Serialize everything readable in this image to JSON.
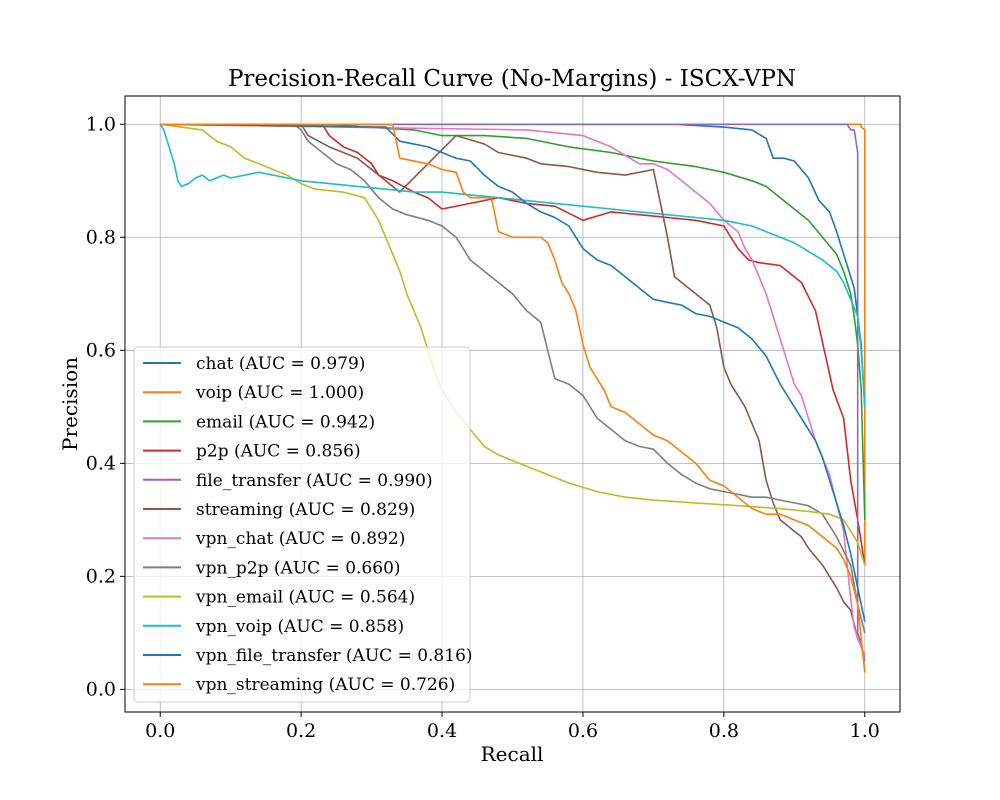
{
  "chart_data": {
    "type": "line",
    "title": "Precision-Recall Curve (No-Margins) - ISCX-VPN",
    "xlabel": "Recall",
    "ylabel": "Precision",
    "xlim": [
      -0.05,
      1.05
    ],
    "ylim": [
      -0.04,
      1.05
    ],
    "xticks": [
      0.0,
      0.2,
      0.4,
      0.6,
      0.8,
      1.0
    ],
    "yticks": [
      0.0,
      0.2,
      0.4,
      0.6,
      0.8,
      1.0
    ],
    "xtick_labels": [
      "0.0",
      "0.2",
      "0.4",
      "0.6",
      "0.8",
      "1.0"
    ],
    "ytick_labels": [
      "0.0",
      "0.2",
      "0.4",
      "0.6",
      "0.8",
      "1.0"
    ],
    "grid": true,
    "legend_position": "lower-left",
    "series": [
      {
        "name": "chat (AUC = 0.979)",
        "color": "#1f77b4",
        "x": [
          0,
          0.73,
          0.8,
          0.84,
          0.86,
          0.87,
          0.885,
          0.9,
          0.92,
          0.935,
          0.95,
          0.96,
          0.965,
          0.975,
          0.985,
          0.99,
          0.995,
          1.0
        ],
        "y": [
          1.0,
          1.0,
          0.995,
          0.99,
          0.975,
          0.94,
          0.94,
          0.935,
          0.905,
          0.865,
          0.845,
          0.81,
          0.79,
          0.75,
          0.71,
          0.66,
          0.61,
          0.5
        ]
      },
      {
        "name": "voip (AUC = 1.000)",
        "color": "#ff7f0e",
        "x": [
          0,
          0.995,
          0.995,
          1.0,
          1.0
        ],
        "y": [
          1.0,
          1.0,
          0.995,
          0.99,
          0.22
        ]
      },
      {
        "name": "email (AUC = 0.942)",
        "color": "#2ca02c",
        "x": [
          0,
          0.24,
          0.29,
          0.36,
          0.4,
          0.46,
          0.52,
          0.58,
          0.64,
          0.7,
          0.76,
          0.8,
          0.84,
          0.86,
          0.88,
          0.9,
          0.92,
          0.94,
          0.96,
          0.97,
          0.98,
          0.985,
          0.99,
          0.995,
          1.0
        ],
        "y": [
          1.0,
          1.0,
          0.995,
          0.99,
          0.98,
          0.98,
          0.975,
          0.96,
          0.95,
          0.935,
          0.925,
          0.915,
          0.9,
          0.89,
          0.87,
          0.85,
          0.83,
          0.8,
          0.77,
          0.74,
          0.7,
          0.66,
          0.61,
          0.53,
          0.3
        ]
      },
      {
        "name": "p2p (AUC = 0.856)",
        "color": "#d62728",
        "x": [
          0,
          0.23,
          0.24,
          0.26,
          0.28,
          0.3,
          0.31,
          0.33,
          0.36,
          0.38,
          0.4,
          0.44,
          0.48,
          0.52,
          0.56,
          0.6,
          0.64,
          0.68,
          0.72,
          0.76,
          0.8,
          0.81,
          0.82,
          0.835,
          0.85,
          0.88,
          0.91,
          0.93,
          0.955,
          0.97,
          0.98,
          0.99,
          1.0
        ],
        "y": [
          1.0,
          1.0,
          0.98,
          0.96,
          0.95,
          0.93,
          0.91,
          0.9,
          0.88,
          0.87,
          0.85,
          0.86,
          0.87,
          0.86,
          0.855,
          0.83,
          0.845,
          0.84,
          0.835,
          0.83,
          0.82,
          0.8,
          0.78,
          0.76,
          0.755,
          0.75,
          0.72,
          0.67,
          0.53,
          0.48,
          0.37,
          0.3,
          0.22
        ]
      },
      {
        "name": "file_transfer (AUC = 0.990)",
        "color": "#9467bd",
        "x": [
          0,
          0.975,
          0.98,
          0.985,
          0.99,
          0.99,
          0.995,
          1.0
        ],
        "y": [
          1.0,
          1.0,
          0.99,
          0.99,
          0.95,
          0.1,
          0.08,
          0.05
        ]
      },
      {
        "name": "streaming (AUC = 0.829)",
        "color": "#8c564b",
        "x": [
          0,
          0.2,
          0.21,
          0.24,
          0.28,
          0.3,
          0.32,
          0.34,
          0.42,
          0.46,
          0.48,
          0.52,
          0.54,
          0.58,
          0.62,
          0.66,
          0.7,
          0.71,
          0.72,
          0.73,
          0.74,
          0.76,
          0.78,
          0.79,
          0.8,
          0.81,
          0.83,
          0.85,
          0.86,
          0.87,
          0.88,
          0.89,
          0.9,
          0.91,
          0.92,
          0.94,
          0.95,
          0.96,
          0.97,
          0.98,
          0.99,
          1.0
        ],
        "y": [
          1.0,
          1.0,
          0.98,
          0.96,
          0.94,
          0.92,
          0.9,
          0.88,
          0.98,
          0.965,
          0.95,
          0.94,
          0.93,
          0.925,
          0.915,
          0.91,
          0.92,
          0.86,
          0.8,
          0.73,
          0.72,
          0.7,
          0.68,
          0.64,
          0.57,
          0.54,
          0.5,
          0.44,
          0.37,
          0.33,
          0.3,
          0.29,
          0.28,
          0.27,
          0.25,
          0.22,
          0.2,
          0.18,
          0.155,
          0.14,
          0.09,
          0.06
        ]
      },
      {
        "name": "vpn_chat (AUC = 0.892)",
        "color": "#e377c2",
        "x": [
          0,
          0.52,
          0.56,
          0.6,
          0.64,
          0.68,
          0.7,
          0.72,
          0.74,
          0.76,
          0.78,
          0.8,
          0.81,
          0.82,
          0.83,
          0.84,
          0.85,
          0.86,
          0.87,
          0.88,
          0.89,
          0.9,
          0.91,
          0.92,
          0.93,
          0.94,
          0.95,
          0.96,
          0.97,
          0.975,
          0.98,
          0.985,
          0.99,
          1.0
        ],
        "y": [
          1.0,
          0.99,
          0.985,
          0.98,
          0.96,
          0.93,
          0.93,
          0.92,
          0.9,
          0.88,
          0.86,
          0.83,
          0.82,
          0.81,
          0.78,
          0.76,
          0.73,
          0.7,
          0.66,
          0.62,
          0.58,
          0.54,
          0.52,
          0.48,
          0.44,
          0.41,
          0.38,
          0.33,
          0.28,
          0.22,
          0.16,
          0.11,
          0.09,
          0.06
        ]
      },
      {
        "name": "vpn_p2p (AUC = 0.660)",
        "color": "#7f7f7f",
        "x": [
          0,
          0.19,
          0.2,
          0.21,
          0.23,
          0.25,
          0.27,
          0.29,
          0.31,
          0.33,
          0.35,
          0.38,
          0.4,
          0.42,
          0.44,
          0.46,
          0.48,
          0.5,
          0.52,
          0.54,
          0.55,
          0.56,
          0.58,
          0.6,
          0.62,
          0.64,
          0.66,
          0.68,
          0.7,
          0.72,
          0.74,
          0.76,
          0.78,
          0.8,
          0.82,
          0.84,
          0.86,
          0.88,
          0.9,
          0.92,
          0.94,
          0.96,
          0.98,
          0.99,
          1.0
        ],
        "y": [
          1.0,
          1.0,
          0.99,
          0.97,
          0.95,
          0.93,
          0.92,
          0.9,
          0.87,
          0.85,
          0.84,
          0.83,
          0.82,
          0.8,
          0.76,
          0.74,
          0.72,
          0.7,
          0.67,
          0.65,
          0.6,
          0.55,
          0.54,
          0.52,
          0.48,
          0.46,
          0.44,
          0.43,
          0.425,
          0.4,
          0.38,
          0.365,
          0.355,
          0.35,
          0.345,
          0.34,
          0.34,
          0.335,
          0.33,
          0.325,
          0.31,
          0.27,
          0.22,
          0.15,
          0.1
        ]
      },
      {
        "name": "vpn_email (AUC = 0.564)",
        "color": "#bcbd22",
        "x": [
          0,
          0.06,
          0.07,
          0.08,
          0.1,
          0.11,
          0.12,
          0.14,
          0.16,
          0.18,
          0.2,
          0.22,
          0.26,
          0.29,
          0.3,
          0.31,
          0.32,
          0.33,
          0.34,
          0.35,
          0.36,
          0.37,
          0.38,
          0.39,
          0.4,
          0.42,
          0.44,
          0.46,
          0.48,
          0.5,
          0.52,
          0.55,
          0.58,
          0.62,
          0.66,
          0.7,
          0.76,
          0.82,
          0.88,
          0.92,
          0.95,
          0.97,
          0.98,
          0.99,
          1.0
        ],
        "y": [
          1.0,
          0.99,
          0.98,
          0.97,
          0.96,
          0.95,
          0.94,
          0.93,
          0.92,
          0.91,
          0.895,
          0.885,
          0.88,
          0.87,
          0.85,
          0.83,
          0.8,
          0.77,
          0.74,
          0.7,
          0.67,
          0.64,
          0.6,
          0.56,
          0.53,
          0.49,
          0.46,
          0.43,
          0.415,
          0.405,
          0.395,
          0.38,
          0.365,
          0.35,
          0.34,
          0.335,
          0.33,
          0.325,
          0.32,
          0.315,
          0.31,
          0.3,
          0.28,
          0.26,
          0.22
        ]
      },
      {
        "name": "vpn_voip (AUC = 0.858)",
        "color": "#17becf",
        "x": [
          0,
          0.005,
          0.01,
          0.015,
          0.02,
          0.025,
          0.03,
          0.04,
          0.05,
          0.06,
          0.07,
          0.08,
          0.09,
          0.1,
          0.12,
          0.14,
          0.16,
          0.18,
          0.2,
          0.24,
          0.28,
          0.32,
          0.36,
          0.4,
          0.44,
          0.48,
          0.52,
          0.56,
          0.6,
          0.64,
          0.68,
          0.72,
          0.76,
          0.8,
          0.84,
          0.88,
          0.9,
          0.92,
          0.94,
          0.96,
          0.97,
          0.98,
          0.99,
          0.995,
          1.0
        ],
        "y": [
          1.0,
          0.99,
          0.97,
          0.95,
          0.93,
          0.9,
          0.89,
          0.895,
          0.905,
          0.91,
          0.9,
          0.905,
          0.91,
          0.905,
          0.91,
          0.915,
          0.91,
          0.905,
          0.9,
          0.895,
          0.89,
          0.885,
          0.88,
          0.88,
          0.875,
          0.87,
          0.865,
          0.86,
          0.855,
          0.85,
          0.845,
          0.84,
          0.835,
          0.83,
          0.82,
          0.8,
          0.79,
          0.775,
          0.76,
          0.74,
          0.72,
          0.69,
          0.66,
          0.6,
          0.5
        ]
      },
      {
        "name": "vpn_file_transfer (AUC = 0.816)",
        "color": "#1f77b4",
        "x": [
          0,
          0.32,
          0.34,
          0.38,
          0.42,
          0.44,
          0.46,
          0.48,
          0.5,
          0.52,
          0.54,
          0.56,
          0.58,
          0.59,
          0.6,
          0.62,
          0.64,
          0.66,
          0.68,
          0.7,
          0.72,
          0.74,
          0.76,
          0.78,
          0.8,
          0.82,
          0.84,
          0.86,
          0.88,
          0.9,
          0.92,
          0.93,
          0.94,
          0.95,
          0.96,
          0.97,
          0.98,
          0.99,
          1.0
        ],
        "y": [
          1.0,
          0.995,
          0.97,
          0.96,
          0.94,
          0.935,
          0.91,
          0.89,
          0.88,
          0.86,
          0.845,
          0.835,
          0.82,
          0.8,
          0.78,
          0.76,
          0.75,
          0.73,
          0.71,
          0.69,
          0.685,
          0.68,
          0.665,
          0.66,
          0.65,
          0.64,
          0.62,
          0.59,
          0.54,
          0.5,
          0.46,
          0.44,
          0.41,
          0.37,
          0.33,
          0.29,
          0.24,
          0.18,
          0.12
        ]
      },
      {
        "name": "vpn_streaming (AUC = 0.726)",
        "color": "#ff7f0e",
        "x": [
          0,
          0.33,
          0.34,
          0.38,
          0.4,
          0.42,
          0.43,
          0.44,
          0.46,
          0.47,
          0.48,
          0.5,
          0.52,
          0.54,
          0.55,
          0.56,
          0.57,
          0.58,
          0.59,
          0.6,
          0.61,
          0.62,
          0.63,
          0.64,
          0.66,
          0.68,
          0.7,
          0.72,
          0.74,
          0.76,
          0.78,
          0.8,
          0.82,
          0.84,
          0.86,
          0.88,
          0.9,
          0.92,
          0.94,
          0.96,
          0.97,
          0.98,
          0.99,
          1.0
        ],
        "y": [
          1.0,
          1.0,
          0.94,
          0.93,
          0.92,
          0.915,
          0.88,
          0.87,
          0.87,
          0.87,
          0.81,
          0.8,
          0.8,
          0.8,
          0.79,
          0.76,
          0.72,
          0.7,
          0.67,
          0.61,
          0.57,
          0.55,
          0.53,
          0.5,
          0.49,
          0.47,
          0.45,
          0.44,
          0.42,
          0.4,
          0.37,
          0.36,
          0.34,
          0.32,
          0.31,
          0.31,
          0.3,
          0.29,
          0.27,
          0.25,
          0.23,
          0.2,
          0.15,
          0.03
        ]
      }
    ]
  }
}
